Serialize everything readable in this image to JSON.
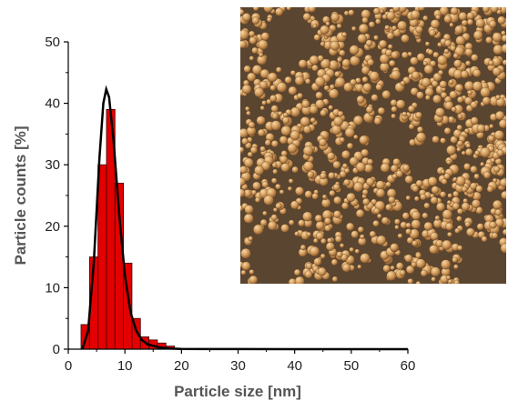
{
  "chart_data": {
    "type": "bar",
    "title": "",
    "xlabel": "Particle size [nm]",
    "ylabel": "Particle counts [%]",
    "xlim": [
      0,
      60
    ],
    "ylim": [
      0,
      50
    ],
    "xticks": [
      "0",
      "10",
      "20",
      "30",
      "40",
      "50",
      "60"
    ],
    "yticks": [
      "0",
      "10",
      "20",
      "30",
      "40",
      "50"
    ],
    "bar_color": "#e30000",
    "fit_color": "#000000",
    "bin_width": 1.5,
    "bins": [
      {
        "x": 3,
        "value": 4
      },
      {
        "x": 4.5,
        "value": 15
      },
      {
        "x": 6,
        "value": 30
      },
      {
        "x": 7.5,
        "value": 39
      },
      {
        "x": 9,
        "value": 27
      },
      {
        "x": 10.5,
        "value": 14
      },
      {
        "x": 12,
        "value": 5
      },
      {
        "x": 13.5,
        "value": 2
      },
      {
        "x": 15,
        "value": 1.5
      },
      {
        "x": 16.5,
        "value": 1
      },
      {
        "x": 18,
        "value": 0.5
      }
    ],
    "fit_curve": {
      "type": "lognormal",
      "peak_x": 6.7,
      "peak_y": 42.3,
      "x": [
        2.5,
        3.5,
        4.5,
        5.5,
        6.2,
        6.7,
        7.2,
        8,
        9,
        10,
        11,
        12,
        13,
        14,
        16,
        18,
        20,
        25,
        30,
        40,
        50,
        60
      ],
      "y": [
        0,
        3,
        14,
        31,
        40,
        42.3,
        41,
        34,
        22,
        12,
        6,
        3,
        1.5,
        0.8,
        0.3,
        0.1,
        0.05,
        0.02,
        0.01,
        0,
        0,
        0
      ]
    },
    "inset": {
      "description_name": "SEM micrograph of spherical nanoparticles",
      "background_color": "#5a4530",
      "particle_color": "#d9a86a"
    }
  }
}
